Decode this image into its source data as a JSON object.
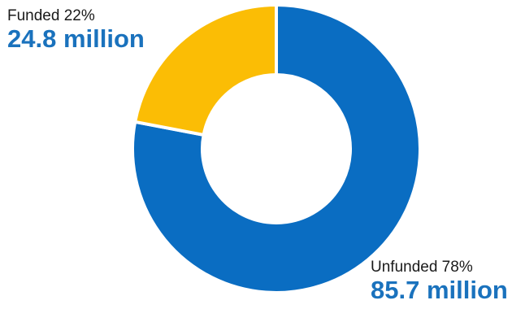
{
  "chart_data": {
    "type": "pie",
    "variant": "donut",
    "slices": [
      {
        "label": "Unfunded",
        "percent": 78,
        "value_text": "85.7 million",
        "value": 85.7,
        "color": "#0a6dc2"
      },
      {
        "label": "Funded",
        "percent": 22,
        "value_text": "24.8 million",
        "value": 24.8,
        "color": "#fbbd05"
      }
    ],
    "annotations": {
      "funded": {
        "percent_text": "Funded 22%",
        "value_text": "24.8 million",
        "value_color": "#1a72bd"
      },
      "unfunded": {
        "percent_text": "Unfunded 78%",
        "value_text": "85.7 million",
        "value_color": "#1a72bd"
      }
    }
  }
}
